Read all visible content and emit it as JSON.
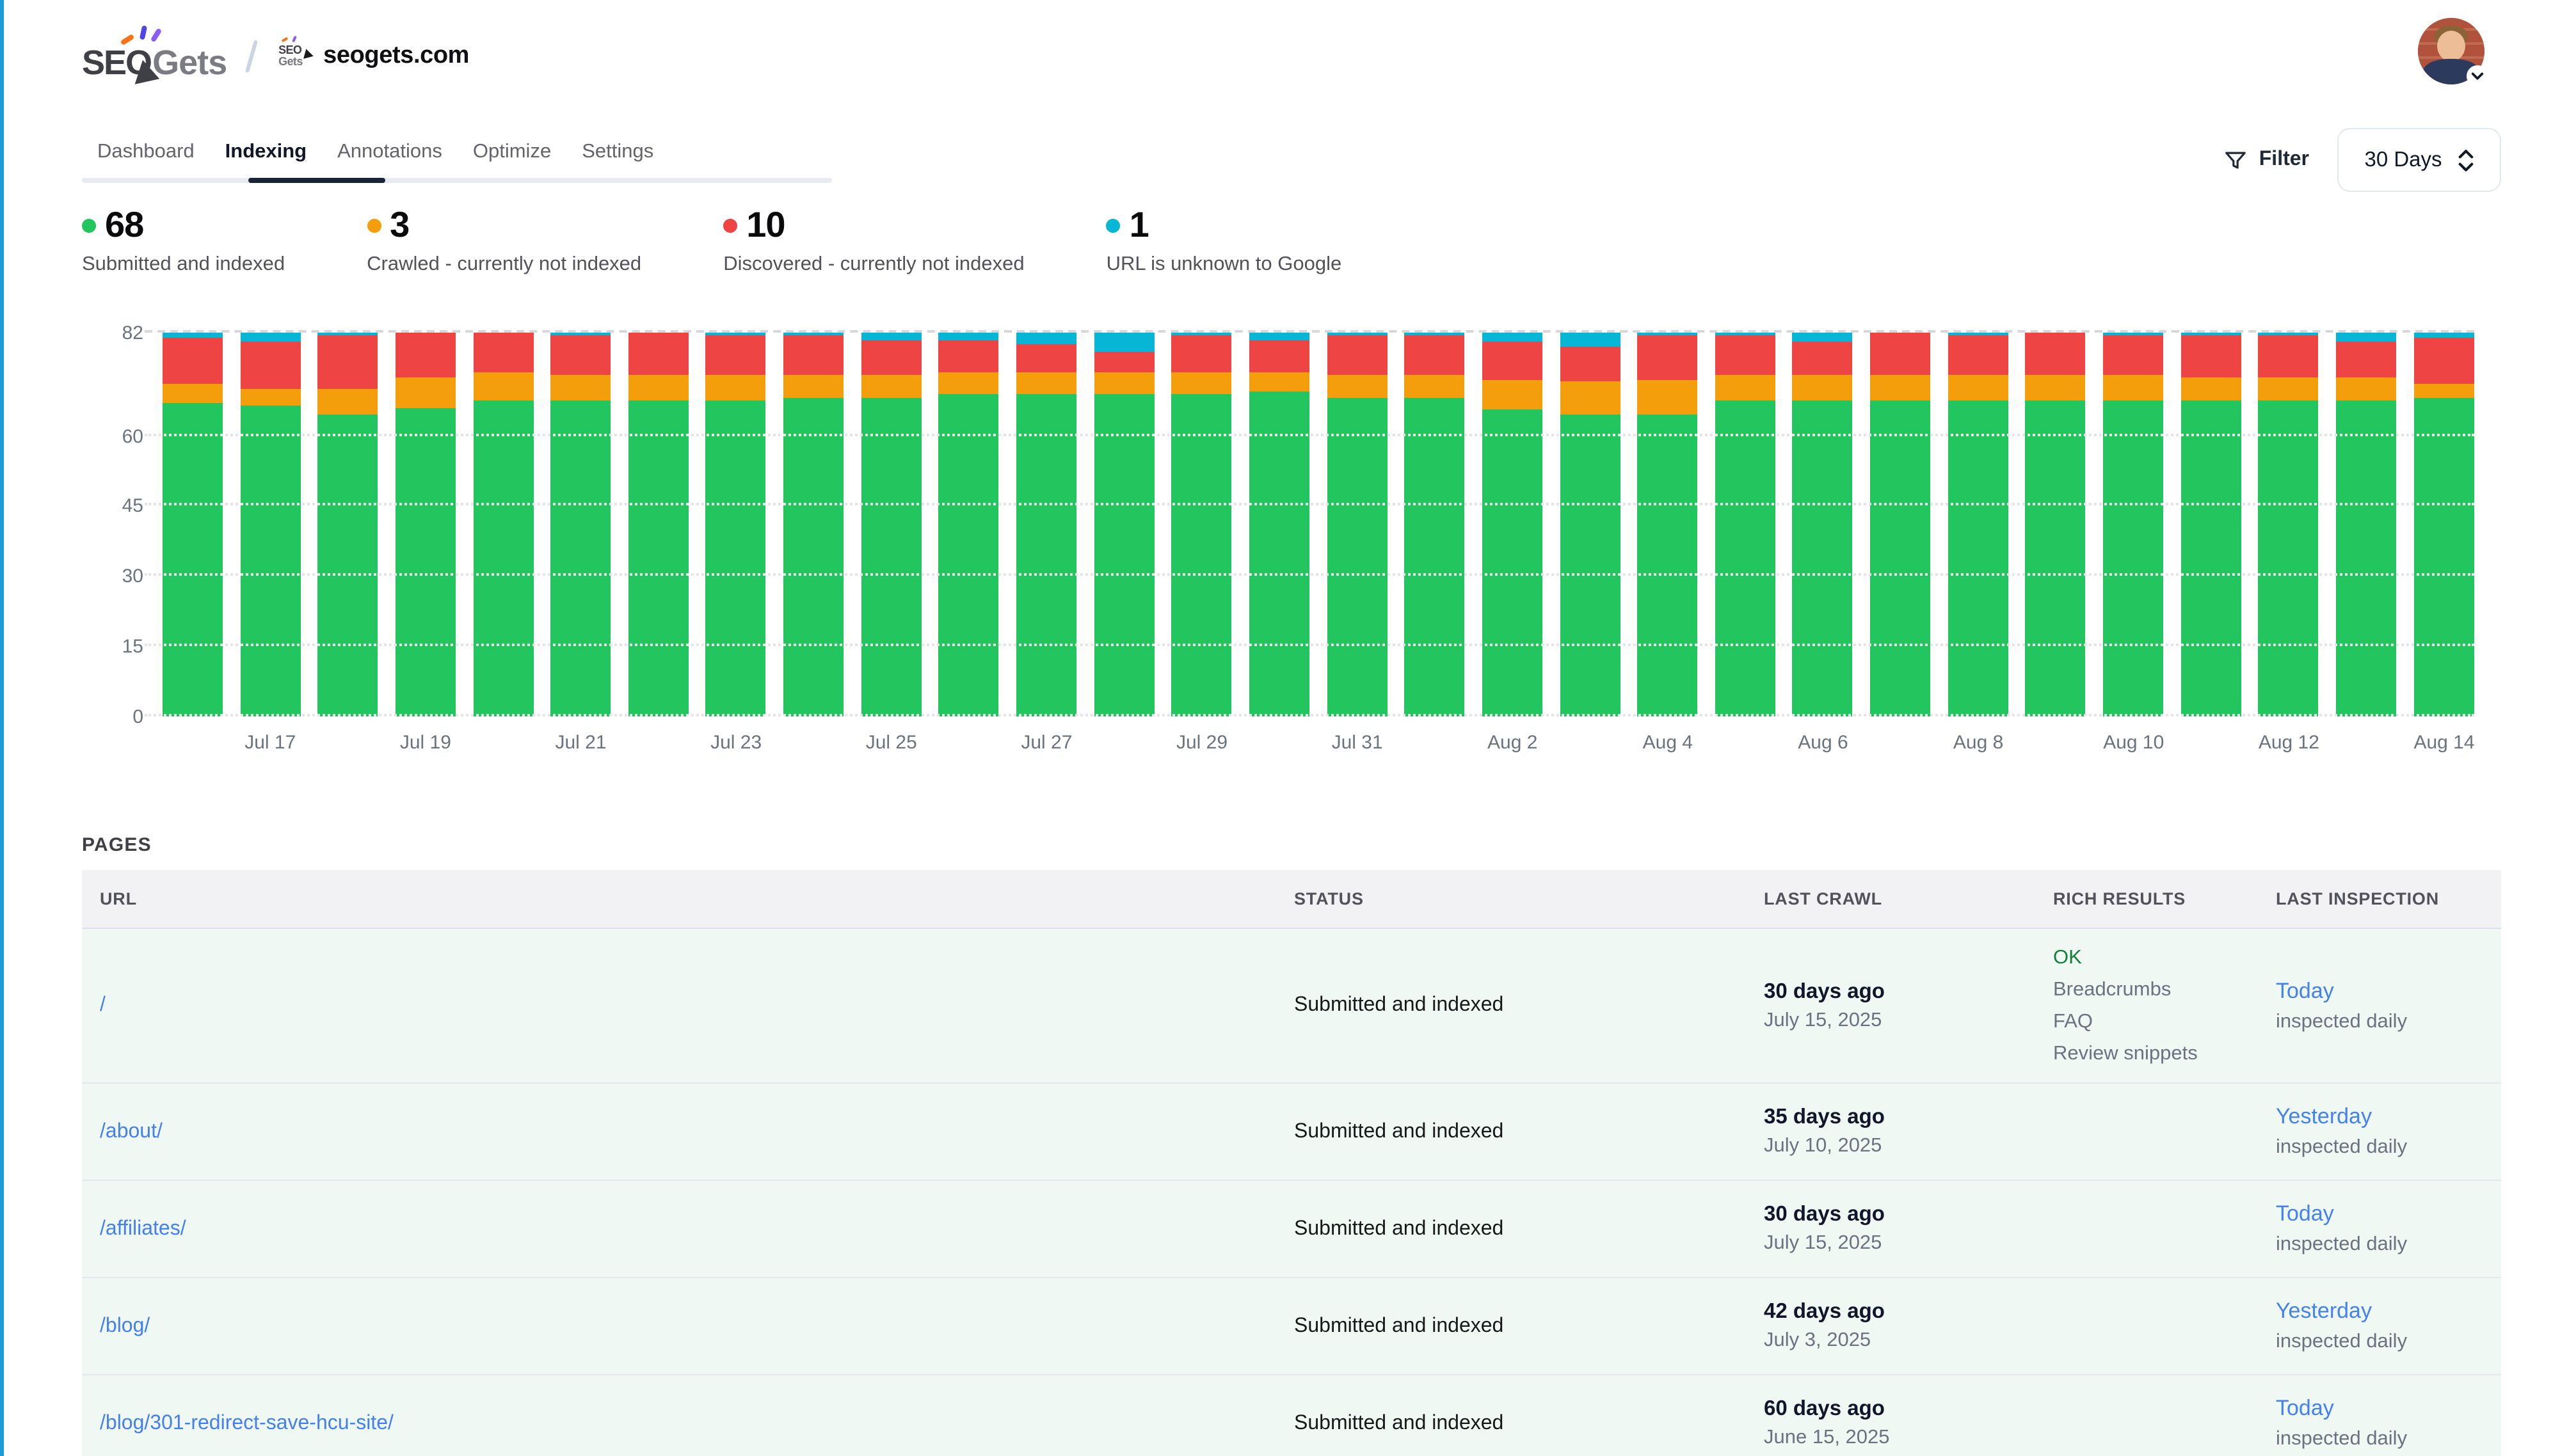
{
  "brand": {
    "name_bold": "SEO",
    "name_light": "Gets",
    "site": "seogets.com"
  },
  "tabs": [
    {
      "label": "Dashboard",
      "active": false
    },
    {
      "label": "Indexing",
      "active": true
    },
    {
      "label": "Annotations",
      "active": false
    },
    {
      "label": "Optimize",
      "active": false
    },
    {
      "label": "Settings",
      "active": false
    }
  ],
  "toolbar": {
    "filter_label": "Filter",
    "range_value": "30 Days"
  },
  "icons": [
    "filter-funnel-icon",
    "select-chevrons-icon",
    "avatar-chevron-down-icon",
    "breadcrumb-slash"
  ],
  "stats": [
    {
      "value": "68",
      "label": "Submitted and indexed",
      "color": "#22c55e"
    },
    {
      "value": "3",
      "label": "Crawled - currently not indexed",
      "color": "#f59e0b"
    },
    {
      "value": "10",
      "label": "Discovered - currently not indexed",
      "color": "#ef4444"
    },
    {
      "value": "1",
      "label": "URL is unknown to Google",
      "color": "#06b6d4"
    }
  ],
  "chart_data": {
    "type": "bar",
    "stacked": true,
    "x": [
      "Jul 16",
      "Jul 17",
      "Jul 18",
      "Jul 19",
      "Jul 20",
      "Jul 21",
      "Jul 22",
      "Jul 23",
      "Jul 24",
      "Jul 25",
      "Jul 26",
      "Jul 27",
      "Jul 28",
      "Jul 29",
      "Jul 30",
      "Jul 31",
      "Aug 1",
      "Aug 2",
      "Aug 3",
      "Aug 4",
      "Aug 5",
      "Aug 6",
      "Aug 7",
      "Aug 8",
      "Aug 9",
      "Aug 10",
      "Aug 11",
      "Aug 12",
      "Aug 13",
      "Aug 14"
    ],
    "x_tick_labels": [
      "Jul 17",
      "Jul 19",
      "Jul 21",
      "Jul 23",
      "Jul 25",
      "Jul 27",
      "Jul 29",
      "Jul 31",
      "Aug 2",
      "Aug 4",
      "Aug 6",
      "Aug 8",
      "Aug 10",
      "Aug 12",
      "Aug 14"
    ],
    "series": [
      {
        "name": "Submitted and indexed",
        "color": "#22c55e",
        "values": [
          67,
          66.5,
          64.5,
          66,
          67.5,
          67.5,
          67.5,
          67.5,
          68,
          68,
          69,
          69,
          69,
          69,
          69.5,
          68,
          68,
          65.5,
          64.5,
          64.5,
          67.5,
          67.5,
          67.5,
          67.5,
          67.5,
          67.5,
          67.5,
          67.5,
          67.5,
          68
        ]
      },
      {
        "name": "Crawled - currently not indexed",
        "color": "#f59e0b",
        "values": [
          4,
          3.5,
          5.5,
          6.5,
          6,
          5.5,
          5.5,
          5.5,
          5,
          5,
          4.5,
          4.5,
          4.5,
          4.5,
          4,
          5,
          5,
          6.5,
          7,
          7.5,
          5.5,
          5.5,
          5.5,
          5.5,
          5.5,
          5.5,
          5,
          5,
          5,
          3
        ]
      },
      {
        "name": "Discovered - currently not indexed",
        "color": "#ef4444",
        "values": [
          10,
          10,
          11.5,
          9.5,
          8.5,
          8.5,
          9,
          8.5,
          8.5,
          7.5,
          7,
          6,
          4.5,
          8,
          7,
          8.5,
          8.5,
          8,
          7.5,
          9.5,
          8.5,
          7,
          9,
          8.5,
          9,
          8.5,
          9,
          9,
          7.5,
          10
        ]
      },
      {
        "name": "URL is unknown to Google",
        "color": "#06b6d4",
        "values": [
          1,
          2,
          0.5,
          0,
          0,
          0.5,
          0,
          0.5,
          0.5,
          1.5,
          1.5,
          2.5,
          4,
          0.5,
          1.5,
          0.5,
          0.5,
          2,
          3,
          0.5,
          0.5,
          2,
          0,
          0.5,
          0,
          0.5,
          0.5,
          0.5,
          2,
          1
        ]
      }
    ],
    "title": "",
    "xlabel": "",
    "ylabel": "",
    "ylim": [
      0,
      82
    ],
    "yticks": [
      0,
      15,
      30,
      45,
      60,
      82
    ],
    "grid": true,
    "legend_position": "none"
  },
  "pages": {
    "title": "PAGES",
    "columns": [
      "URL",
      "STATUS",
      "LAST CRAWL",
      "RICH RESULTS",
      "LAST INSPECTION"
    ],
    "rows": [
      {
        "url": "/",
        "status": "Submitted and indexed",
        "last_crawl": "30 days ago",
        "last_crawl_date": "July 15, 2025",
        "rich_status": "OK",
        "rich_items": [
          "Breadcrumbs",
          "FAQ",
          "Review snippets"
        ],
        "inspection": "Today",
        "inspection_note": "inspected daily"
      },
      {
        "url": "/about/",
        "status": "Submitted and indexed",
        "last_crawl": "35 days ago",
        "last_crawl_date": "July 10, 2025",
        "rich_status": "",
        "rich_items": [],
        "inspection": "Yesterday",
        "inspection_note": "inspected daily"
      },
      {
        "url": "/affiliates/",
        "status": "Submitted and indexed",
        "last_crawl": "30 days ago",
        "last_crawl_date": "July 15, 2025",
        "rich_status": "",
        "rich_items": [],
        "inspection": "Today",
        "inspection_note": "inspected daily"
      },
      {
        "url": "/blog/",
        "status": "Submitted and indexed",
        "last_crawl": "42 days ago",
        "last_crawl_date": "July 3, 2025",
        "rich_status": "",
        "rich_items": [],
        "inspection": "Yesterday",
        "inspection_note": "inspected daily"
      },
      {
        "url": "/blog/301-redirect-save-hcu-site/",
        "status": "Submitted and indexed",
        "last_crawl": "60 days ago",
        "last_crawl_date": "June 15, 2025",
        "rich_status": "",
        "rich_items": [],
        "inspection": "Today",
        "inspection_note": "inspected daily"
      }
    ]
  }
}
